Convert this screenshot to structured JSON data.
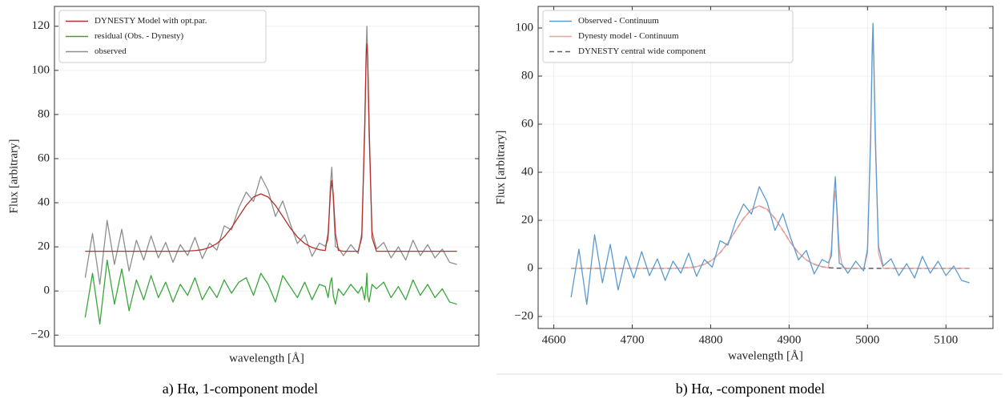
{
  "chart_data": [
    {
      "type": "line",
      "caption": "a) Hα, 1-component model",
      "xlabel": "wavelength [Å]",
      "ylabel": "Flux [arbitrary]",
      "xlim": [
        4580,
        5160
      ],
      "ylim": [
        -25,
        129
      ],
      "yticks": [
        {
          "value": -20,
          "label": "−20"
        },
        0,
        20,
        40,
        60,
        80,
        100,
        120
      ],
      "grid": true,
      "legend": "upper left",
      "x": [
        4622,
        4632,
        4642,
        4652,
        4662,
        4672,
        4682,
        4692,
        4702,
        4712,
        4722,
        4732,
        4742,
        4752,
        4762,
        4772,
        4782,
        4792,
        4802,
        4812,
        4822,
        4832,
        4842,
        4852,
        4862,
        4872,
        4882,
        4892,
        4902,
        4912,
        4922,
        4932,
        4942,
        4950,
        4954,
        4957,
        4959,
        4961,
        4964,
        4968,
        4975,
        4985,
        4995,
        5000,
        5004,
        5006,
        5007,
        5008,
        5010,
        5014,
        5020,
        5030,
        5040,
        5050,
        5060,
        5070,
        5080,
        5090,
        5100,
        5110,
        5120,
        5130
      ],
      "series": [
        {
          "name": "DYNESTY Model with opt.par.",
          "color": "#b5302a",
          "linestyle": "solid",
          "values": [
            18,
            18,
            18,
            18,
            18,
            18,
            18,
            18,
            18,
            18,
            18,
            18,
            18,
            18,
            18.1,
            18.3,
            18.7,
            19.7,
            21.5,
            24.5,
            28.7,
            33.8,
            38.8,
            42.6,
            44,
            42.6,
            38.8,
            33.8,
            28.7,
            24.5,
            21.5,
            19.7,
            18.7,
            18.3,
            26.2,
            43.8,
            50.1,
            43.7,
            26.1,
            18.4,
            18,
            18,
            18,
            24.2,
            75.3,
            106.9,
            112,
            106.9,
            75.3,
            24.2,
            18,
            18,
            18,
            18,
            18,
            18,
            18,
            18,
            18,
            18,
            18,
            18
          ]
        },
        {
          "name": "residual (Obs. - Dynesty)",
          "color": "#3aa63a",
          "linestyle": "solid",
          "values": [
            -12,
            8,
            -15,
            14,
            -6,
            10,
            -9,
            5,
            -4,
            7,
            -3,
            4,
            -5,
            3,
            -2,
            6,
            -4,
            2,
            -3,
            5,
            -1,
            4,
            6,
            -2,
            8,
            3,
            -5,
            7,
            2,
            -3,
            4,
            -4,
            3,
            2,
            -3,
            4,
            6,
            -2,
            -6,
            1,
            -2,
            3,
            -1,
            2,
            -4,
            3,
            8,
            -2,
            -5,
            3,
            1,
            4,
            -3,
            2,
            -4,
            5,
            -2,
            3,
            -3,
            1,
            -5,
            -6
          ]
        },
        {
          "name": "observed",
          "color": "#8e8e8e",
          "linestyle": "solid",
          "values": [
            6,
            26,
            3,
            32,
            12,
            28,
            9,
            23,
            14,
            25,
            15,
            22,
            13,
            21,
            16.1,
            24.3,
            14.7,
            21.7,
            18.5,
            29.5,
            27.7,
            37.8,
            44.8,
            40.6,
            52,
            45.6,
            33.8,
            40.8,
            30.7,
            21.5,
            25.5,
            15.7,
            21.7,
            20.3,
            23.2,
            47.8,
            56.1,
            41.7,
            20.1,
            19.4,
            16,
            21,
            17,
            26.2,
            71.3,
            109.9,
            120,
            104.9,
            70.3,
            27.2,
            19,
            22,
            15,
            20,
            14,
            23,
            16,
            21,
            15,
            19,
            13,
            12
          ]
        }
      ]
    },
    {
      "type": "line",
      "caption": "b) Hα, -component model",
      "xlabel": "wavelength [Å]",
      "ylabel": "Flux [arbitrary]",
      "xlim": [
        4580,
        5160
      ],
      "ylim": [
        -25,
        109
      ],
      "xticks": [
        4600,
        4700,
        4800,
        4900,
        5000,
        5100
      ],
      "yticks": [
        {
          "value": -20,
          "label": "−20"
        },
        0,
        20,
        40,
        60,
        80,
        100
      ],
      "grid": true,
      "legend": "upper left",
      "x": [
        4622,
        4632,
        4642,
        4652,
        4662,
        4672,
        4682,
        4692,
        4702,
        4712,
        4722,
        4732,
        4742,
        4752,
        4762,
        4772,
        4782,
        4792,
        4802,
        4812,
        4822,
        4832,
        4842,
        4852,
        4862,
        4872,
        4882,
        4892,
        4902,
        4912,
        4922,
        4932,
        4942,
        4950,
        4954,
        4957,
        4959,
        4961,
        4964,
        4968,
        4975,
        4985,
        4995,
        5000,
        5004,
        5006,
        5007,
        5008,
        5010,
        5014,
        5020,
        5030,
        5040,
        5050,
        5060,
        5070,
        5080,
        5090,
        5100,
        5110,
        5120,
        5130
      ],
      "series": [
        {
          "name": "Observed - Continuum",
          "color": "#5a9bcf",
          "linestyle": "solid",
          "values": [
            -12,
            8,
            -15,
            14,
            -6,
            10,
            -9,
            5,
            -4,
            7,
            -3,
            4,
            -5,
            3,
            -2,
            6.3,
            -3.3,
            3.7,
            0.5,
            11.5,
            9.7,
            19.8,
            26.8,
            22.6,
            34,
            27.6,
            15.8,
            22.8,
            12.7,
            3.5,
            7.5,
            -2.3,
            3.7,
            2.3,
            5.2,
            29.8,
            38.1,
            23.7,
            2.1,
            1.4,
            -2,
            3,
            -1,
            8.2,
            53.3,
            91.9,
            102,
            86.9,
            52.3,
            9.2,
            1,
            4,
            -3,
            2,
            -4,
            5,
            -2,
            3,
            -3,
            1,
            -5,
            -6
          ]
        },
        {
          "name": "Dynesty model - Continuum",
          "color": "#f0a09a",
          "linestyle": "solid",
          "values": [
            0,
            0,
            0,
            0,
            0,
            0,
            0,
            0,
            0,
            0,
            0,
            0,
            0,
            0,
            0.1,
            0.3,
            0.7,
            1.7,
            3.5,
            6.5,
            10.7,
            15.8,
            20.8,
            24.6,
            26,
            24.6,
            20.8,
            15.8,
            10.7,
            6.5,
            3.5,
            1.7,
            0.7,
            0.3,
            8.2,
            25.8,
            32.1,
            25.7,
            8.1,
            0.4,
            0,
            0,
            0,
            6.2,
            57.3,
            88.9,
            94,
            88.9,
            57.3,
            6.2,
            0,
            0,
            0,
            0,
            0,
            0,
            0,
            0,
            0,
            0,
            0,
            0
          ]
        },
        {
          "name": "DYNESTY central wide component",
          "color": "#5c5c66",
          "linestyle": "dashed",
          "values": [
            0,
            0,
            0,
            0,
            0,
            0,
            0,
            0,
            0,
            0,
            0,
            0,
            0,
            0,
            0.1,
            0.3,
            0.7,
            1.7,
            3.5,
            6.5,
            10.7,
            15.8,
            20.8,
            24.6,
            26,
            24.6,
            20.8,
            15.8,
            10.7,
            6.5,
            3.5,
            1.7,
            0.7,
            0.3,
            0.2,
            0.2,
            0.1,
            0.1,
            0.1,
            0,
            0,
            0,
            0,
            0,
            0,
            0,
            0,
            0,
            0,
            0,
            0,
            0,
            0,
            0,
            0,
            0,
            0,
            0,
            0,
            0,
            0,
            0
          ]
        }
      ]
    }
  ]
}
